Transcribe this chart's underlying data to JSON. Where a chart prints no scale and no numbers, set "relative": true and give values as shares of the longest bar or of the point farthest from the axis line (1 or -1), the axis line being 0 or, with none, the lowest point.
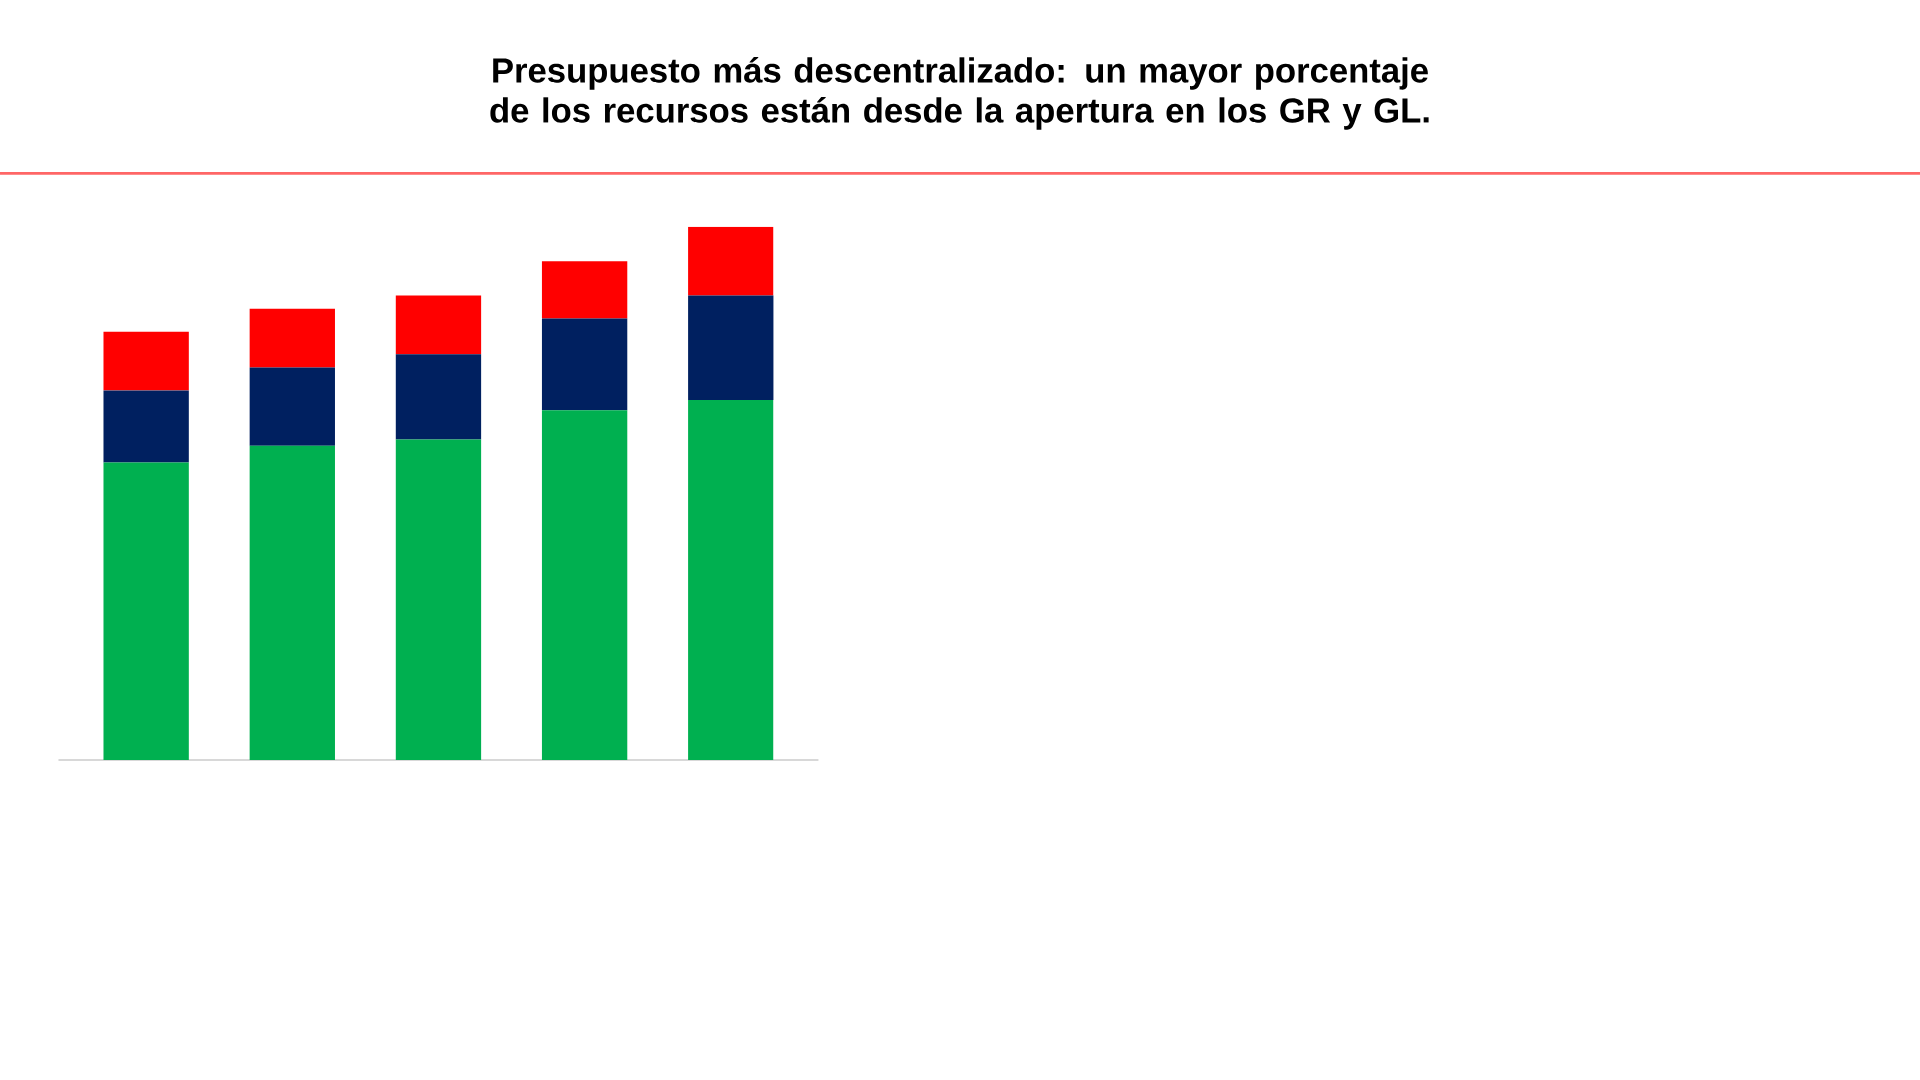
{
  "chart_data": {
    "type": "bar",
    "title": "Presupuesto más descentralizado: un mayor porcentaje de los recursos están desde la apertura en los GR y GL.",
    "relative": true,
    "stacked": true,
    "categories": [
      null,
      null,
      null,
      null,
      null
    ],
    "series": [
      {
        "color": "#00b050",
        "values": [
          0.558,
          0.589,
          0.601,
          0.656,
          0.675
        ]
      },
      {
        "color": "#002060",
        "values": [
          0.135,
          0.147,
          0.16,
          0.172,
          0.196
        ]
      },
      {
        "color": "#ff0000",
        "values": [
          0.11,
          0.11,
          0.11,
          0.107,
          0.129
        ]
      }
    ]
  }
}
